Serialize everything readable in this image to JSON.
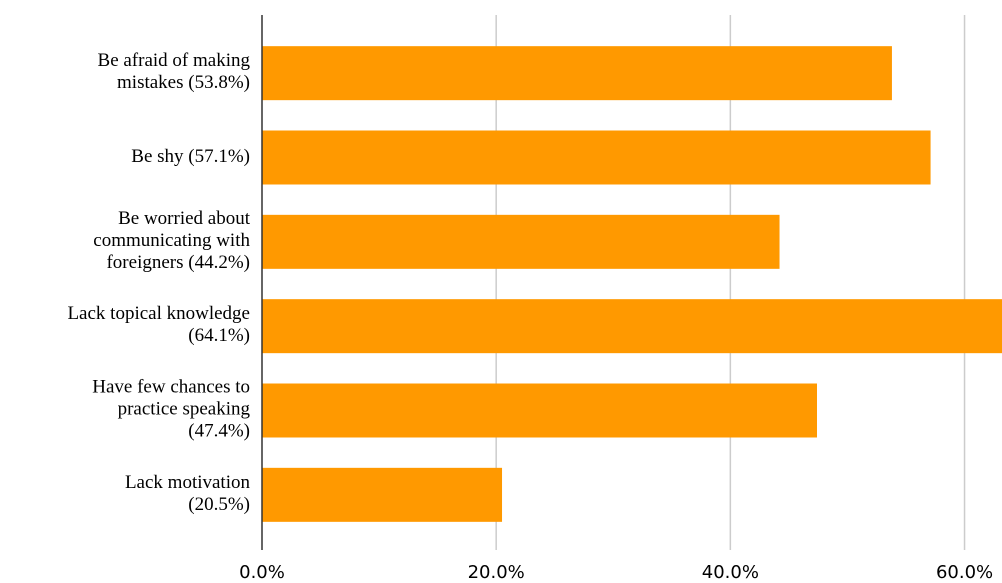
{
  "chart_data": {
    "type": "bar",
    "orientation": "horizontal",
    "categories": [
      "Be afraid of making\nmistakes (53.8%)",
      "Be shy  (57.1%)",
      "Be worried about\ncommunicating with\nforeigners (44.2%)",
      "Lack topical knowledge\n(64.1%)",
      "Have few chances to\npractice speaking\n(47.4%)",
      "Lack motivation\n(20.5%)"
    ],
    "values": [
      53.8,
      57.1,
      44.2,
      64.1,
      47.4,
      20.5
    ],
    "color": "#ff9900",
    "xlim": [
      0,
      63.2
    ],
    "xticks": [
      {
        "value": 0,
        "label": "0.0%"
      },
      {
        "value": 20,
        "label": "20.0%"
      },
      {
        "value": 40,
        "label": "40.0%"
      },
      {
        "value": 60,
        "label": "60.0%"
      }
    ],
    "grid": true
  }
}
